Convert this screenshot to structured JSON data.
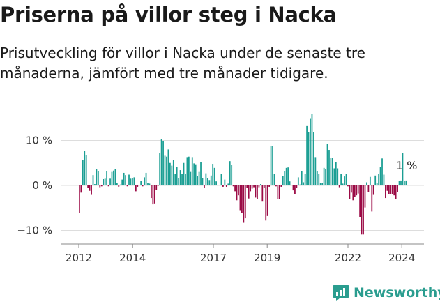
{
  "title": "Priserna på villor steg i Nacka",
  "subtitle": "Prisutveckling för villor i Nacka under de senaste tre månaderna, jämfört med tre månader tidigare.",
  "brand": "Newsworthy",
  "colors": {
    "positive": "#1a9e93",
    "negative": "#9b0a45",
    "grid": "#dddddd",
    "brand": "#2a9d8f"
  },
  "chart_data": {
    "type": "bar",
    "ylabel": "",
    "xlabel": "",
    "ylim": [
      -12,
      17
    ],
    "y_ticks": [
      {
        "value": 10,
        "label": "10 %"
      },
      {
        "value": 0,
        "label": "0 %"
      },
      {
        "value": -10,
        "label": "−10 %"
      }
    ],
    "x_ticks": [
      {
        "value": 2012,
        "label": "2012"
      },
      {
        "value": 2014,
        "label": "2014"
      },
      {
        "value": 2017,
        "label": "2017"
      },
      {
        "value": 2019,
        "label": "2019"
      },
      {
        "value": 2022,
        "label": "2022"
      },
      {
        "value": 2024,
        "label": "2024"
      }
    ],
    "start_year": 2012,
    "end_year": 2024.2,
    "annotation": {
      "label": "1 %"
    },
    "series": [
      {
        "values": [
          -6.2,
          -1.6,
          5.7,
          7.6,
          6.8,
          -0.5,
          -1.2,
          -2.1,
          2.3,
          0.3,
          3.6,
          3.1,
          -0.4,
          -0.2,
          1.4,
          1.5,
          3.2,
          -0.2,
          1.5,
          3.0,
          3.3,
          3.7,
          0.6,
          -0.3,
          0.2,
          1.3,
          2.8,
          2.3,
          -0.2,
          2.4,
          1.5,
          1.6,
          1.8,
          -1.3,
          -0.3,
          0.1,
          1.0,
          -0.2,
          1.8,
          2.8,
          0.6,
          0.4,
          -2.8,
          -4.2,
          -4.0,
          -1.0,
          -0.1,
          7.2,
          10.3,
          9.9,
          6.6,
          6.4,
          8.0,
          5.0,
          4.4,
          5.7,
          2.5,
          4.1,
          1.6,
          3.4,
          2.6,
          5.0,
          2.6,
          6.3,
          6.4,
          3.0,
          6.3,
          4.9,
          4.7,
          2.1,
          3.0,
          5.2,
          1.7,
          -0.5,
          2.7,
          1.6,
          1.2,
          2.2,
          4.8,
          3.9,
          0.9,
          0.1,
          0.1,
          2.6,
          -0.3,
          1.3,
          -0.3,
          0.4,
          5.4,
          4.5,
          -0.2,
          -1.3,
          -3.3,
          -2.2,
          -5.5,
          -6.2,
          -8.3,
          -7.3,
          -0.5,
          -2.9,
          -1.3,
          -0.7,
          -0.4,
          -2.7,
          -3.0,
          -0.4,
          0.3,
          -3.6,
          -0.5,
          -7.8,
          -6.8,
          -0.3,
          8.8,
          8.8,
          2.6,
          -0.2,
          -3.0,
          -3.1,
          -0.3,
          2.1,
          3.1,
          3.9,
          4.0,
          0.9,
          0.1,
          -1.1,
          -2.0,
          -0.6,
          1.8,
          0.2,
          3.1,
          0.7,
          2.5,
          13.2,
          11.9,
          14.8,
          15.9,
          11.8,
          6.3,
          3.2,
          2.5,
          0.5,
          0.5,
          3.9,
          3.7,
          9.3,
          7.9,
          6.2,
          6.1,
          3.8,
          5.2,
          3.8,
          -0.4,
          2.5,
          0.4,
          2.0,
          2.6,
          -0.2,
          -3.1,
          -1.6,
          -3.3,
          -2.6,
          -2.2,
          -1.8,
          -7.1,
          -10.9,
          -10.9,
          -4.9,
          0.7,
          -1.4,
          1.9,
          -5.8,
          -2.1,
          2.2,
          0.5,
          2.6,
          4.1,
          6.0,
          2.4,
          -2.8,
          -1.2,
          -1.9,
          -2.0,
          -2.0,
          -2.2,
          -3.0,
          -1.5,
          1.0,
          1.1,
          7.2,
          1.0,
          1.1
        ]
      }
    ]
  }
}
